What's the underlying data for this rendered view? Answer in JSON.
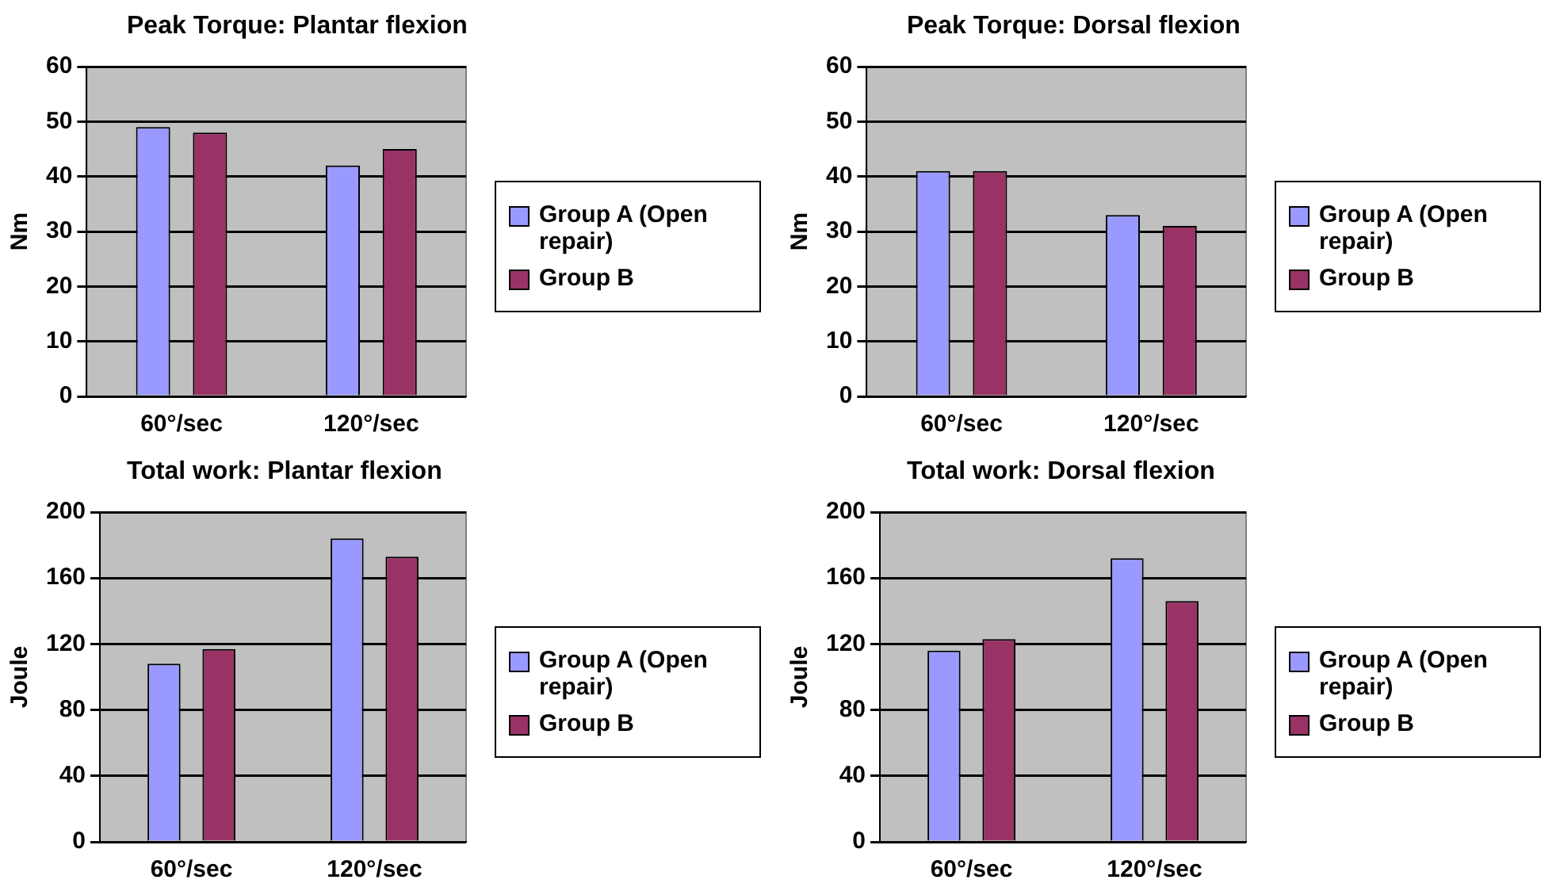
{
  "chart_data": [
    {
      "type": "bar",
      "title": "Peak Torque: Plantar flexion",
      "ylabel": "Nm",
      "categories": [
        "60°/sec",
        "120°/sec"
      ],
      "series": [
        {
          "name": "Group A (Open repair)",
          "color": "#9999ff",
          "values": [
            49,
            42
          ]
        },
        {
          "name": "Group B",
          "color": "#993366",
          "values": [
            48,
            45
          ]
        }
      ],
      "ylim": [
        0,
        60
      ],
      "yticks": [
        0,
        10,
        20,
        30,
        40,
        50,
        60
      ],
      "grid": "y",
      "legend": "right"
    },
    {
      "type": "bar",
      "title": "Peak Torque: Dorsal flexion",
      "ylabel": "Nm",
      "categories": [
        "60°/sec",
        "120°/sec"
      ],
      "series": [
        {
          "name": "Group A (Open repair)",
          "color": "#9999ff",
          "values": [
            41,
            33
          ]
        },
        {
          "name": "Group B",
          "color": "#993366",
          "values": [
            41,
            31
          ]
        }
      ],
      "ylim": [
        0,
        60
      ],
      "yticks": [
        0,
        10,
        20,
        30,
        40,
        50,
        60
      ],
      "grid": "y",
      "legend": "right"
    },
    {
      "type": "bar",
      "title": "Total work: Plantar flexion",
      "ylabel": "Joule",
      "categories": [
        "60°/sec",
        "120°/sec"
      ],
      "series": [
        {
          "name": "Group A (Open repair)",
          "color": "#9999ff",
          "values": [
            108,
            184
          ]
        },
        {
          "name": "Group B",
          "color": "#993366",
          "values": [
            117,
            173
          ]
        }
      ],
      "ylim": [
        0,
        200
      ],
      "yticks": [
        0,
        40,
        80,
        120,
        160,
        200
      ],
      "grid": "y",
      "legend": "right"
    },
    {
      "type": "bar",
      "title": "Total work: Dorsal flexion",
      "ylabel": "Joule",
      "categories": [
        "60°/sec",
        "120°/sec"
      ],
      "series": [
        {
          "name": "Group A (Open repair)",
          "color": "#9999ff",
          "values": [
            116,
            172
          ]
        },
        {
          "name": "Group B",
          "color": "#993366",
          "values": [
            123,
            146
          ]
        }
      ],
      "ylim": [
        0,
        200
      ],
      "yticks": [
        0,
        40,
        80,
        120,
        160,
        200
      ],
      "grid": "y",
      "legend": "right"
    }
  ]
}
